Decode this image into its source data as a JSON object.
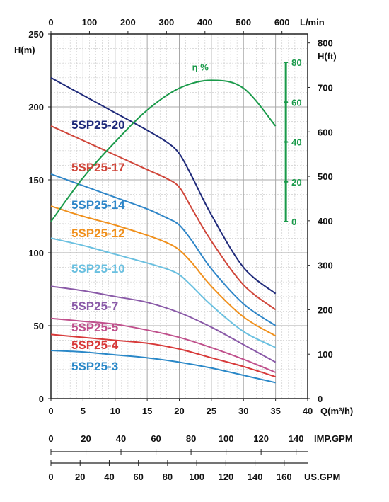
{
  "chart_data": {
    "type": "line",
    "axes": {
      "left": {
        "label": "H(m)",
        "range": [
          0,
          250
        ],
        "ticks": [
          "0",
          "50",
          "100",
          "150",
          "200",
          "250"
        ]
      },
      "right": {
        "label": "H(ft)",
        "range": [
          0,
          820.2
        ],
        "ticks": [
          "0",
          "100",
          "200",
          "300",
          "400",
          "500",
          "600",
          "700",
          "800"
        ]
      },
      "bottom": {
        "label": "Q(m³/h)",
        "range": [
          0,
          40
        ],
        "ticks": [
          "0",
          "5",
          "10",
          "15",
          "20",
          "25",
          "30",
          "35",
          "40"
        ]
      },
      "top": {
        "label": "L/min",
        "range": [
          0,
          666.7
        ],
        "ticks": [
          "0",
          "100",
          "200",
          "300",
          "400",
          "500",
          "600"
        ]
      },
      "imp_gpm": {
        "label": "IMP.GPM",
        "range": [
          0,
          146.6
        ],
        "ticks": [
          "0",
          "20",
          "40",
          "60",
          "80",
          "100",
          "120",
          "140"
        ]
      },
      "us_gpm": {
        "label": "US.GPM",
        "range": [
          0,
          176.1
        ],
        "ticks": [
          "0",
          "20",
          "40",
          "60",
          "80",
          "100",
          "120",
          "140",
          "160"
        ]
      },
      "efficiency": {
        "label": "η %",
        "range": [
          0,
          80
        ],
        "ticks": [
          "0",
          "20",
          "40",
          "60",
          "80"
        ]
      }
    },
    "grid": true,
    "series": [
      {
        "name": "5SP25-20",
        "color": "#1f2a7a",
        "x": [
          0,
          5,
          10,
          15,
          18,
          20,
          22,
          25,
          30,
          35
        ],
        "y": [
          220,
          208,
          196,
          184,
          176,
          168,
          152,
          126,
          90,
          72
        ]
      },
      {
        "name": "5SP25-17",
        "color": "#d0463a",
        "x": [
          0,
          5,
          10,
          15,
          18,
          20,
          22,
          25,
          30,
          35
        ],
        "y": [
          187,
          177,
          167,
          157,
          151,
          145,
          130,
          108,
          78,
          61
        ]
      },
      {
        "name": "5SP25-14",
        "color": "#2f86c8",
        "x": [
          0,
          5,
          10,
          15,
          18,
          20,
          22,
          25,
          30,
          35
        ],
        "y": [
          154,
          146,
          138,
          130,
          124,
          119,
          108,
          89,
          65,
          50
        ]
      },
      {
        "name": "5SP25-12",
        "color": "#f0901c",
        "x": [
          0,
          5,
          10,
          15,
          18,
          20,
          22,
          25,
          30,
          35
        ],
        "y": [
          132,
          125,
          119,
          112,
          107,
          102,
          93,
          77,
          56,
          43
        ]
      },
      {
        "name": "5SP25-10",
        "color": "#6ac0e0",
        "x": [
          0,
          5,
          10,
          15,
          18,
          20,
          22,
          25,
          30,
          35
        ],
        "y": [
          110,
          105,
          99,
          93,
          89,
          85,
          77,
          64,
          46,
          35
        ]
      },
      {
        "name": "5SP25-7",
        "color": "#8a5aa8",
        "x": [
          0,
          5,
          10,
          15,
          20,
          25,
          30,
          35
        ],
        "y": [
          77,
          74,
          70,
          66,
          59,
          49,
          37,
          25
        ]
      },
      {
        "name": "5SP25-5",
        "color": "#c0508c",
        "x": [
          0,
          5,
          10,
          15,
          20,
          25,
          30,
          35
        ],
        "y": [
          55,
          53,
          51,
          47,
          42,
          35,
          27,
          18
        ]
      },
      {
        "name": "5SP25-4",
        "color": "#d83a3a",
        "x": [
          0,
          5,
          10,
          15,
          20,
          25,
          30,
          35
        ],
        "y": [
          44,
          42,
          40,
          38,
          34,
          28,
          22,
          15
        ]
      },
      {
        "name": "5SP25-3",
        "color": "#2a88c8",
        "x": [
          0,
          5,
          10,
          15,
          20,
          25,
          30,
          35
        ],
        "y": [
          33,
          32,
          30,
          28,
          25,
          21,
          16,
          11
        ]
      }
    ],
    "efficiency": {
      "name": "η %",
      "color": "#1a9a4a",
      "x": [
        0,
        5,
        10,
        15,
        20,
        25,
        30,
        35
      ],
      "y": [
        0,
        22,
        40,
        56,
        67,
        71,
        67,
        48
      ]
    },
    "labels": [
      {
        "text": "5SP25-20",
        "series": "5SP25-20"
      },
      {
        "text": "5SP25-17",
        "series": "5SP25-17"
      },
      {
        "text": "5SP25-14",
        "series": "5SP25-14"
      },
      {
        "text": "5SP25-12",
        "series": "5SP25-12"
      },
      {
        "text": "5SP25-10",
        "series": "5SP25-10"
      },
      {
        "text": "5SP25-7",
        "series": "5SP25-7"
      },
      {
        "text": "5SP25-5",
        "series": "5SP25-5"
      },
      {
        "text": "5SP25-4",
        "series": "5SP25-4"
      },
      {
        "text": "5SP25-3",
        "series": "5SP25-3"
      }
    ]
  }
}
